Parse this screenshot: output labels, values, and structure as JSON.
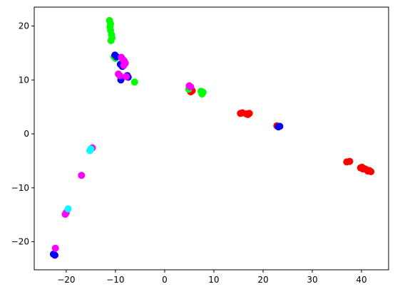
{
  "chart_data": {
    "type": "scatter",
    "title": "",
    "xlabel": "",
    "ylabel": "",
    "xlim": [
      -26.5,
      45.5
    ],
    "ylim": [
      -25.2,
      23.5
    ],
    "xticks": [
      -20,
      -10,
      0,
      10,
      20,
      30,
      40
    ],
    "yticks": [
      -20,
      -10,
      0,
      10,
      20
    ],
    "xtick_labels": [
      "−20",
      "−10",
      "0",
      "10",
      "20",
      "30",
      "40"
    ],
    "ytick_labels": [
      "−20",
      "−10",
      "0",
      "10",
      "20"
    ],
    "grid": false,
    "legend": "none",
    "series": [
      {
        "color": "#ff0000",
        "points": [
          [
            5.3,
            7.8
          ],
          [
            5.6,
            8.0
          ],
          [
            5.2,
            8.1
          ],
          [
            15.4,
            3.8
          ],
          [
            15.8,
            3.9
          ],
          [
            16.6,
            3.7
          ],
          [
            17.2,
            3.8
          ],
          [
            16.9,
            3.6
          ],
          [
            22.8,
            1.5
          ],
          [
            37.0,
            -5.2
          ],
          [
            37.6,
            -5.1
          ],
          [
            39.8,
            -6.3
          ],
          [
            40.3,
            -6.5
          ],
          [
            40.7,
            -6.5
          ],
          [
            41.1,
            -6.7
          ],
          [
            41.6,
            -6.8
          ],
          [
            41.9,
            -7.0
          ],
          [
            40.1,
            -6.2
          ],
          [
            41.3,
            -6.9
          ]
        ]
      },
      {
        "color": "#00ff00",
        "points": [
          [
            -11.2,
            21.0
          ],
          [
            -11.0,
            20.4
          ],
          [
            -11.1,
            19.8
          ],
          [
            -11.0,
            19.2
          ],
          [
            -10.8,
            18.4
          ],
          [
            -10.7,
            17.8
          ],
          [
            -10.9,
            17.3
          ],
          [
            -10.3,
            14.3
          ],
          [
            -10.0,
            14.0
          ],
          [
            -6.1,
            9.6
          ],
          [
            4.9,
            8.3
          ],
          [
            7.4,
            7.9
          ],
          [
            7.6,
            7.4
          ],
          [
            7.8,
            7.7
          ]
        ]
      },
      {
        "color": "#0000ff",
        "points": [
          [
            -10.1,
            14.6
          ],
          [
            -9.8,
            14.3
          ],
          [
            -9.0,
            12.9
          ],
          [
            -8.6,
            12.5
          ],
          [
            -7.6,
            10.8
          ],
          [
            -7.4,
            10.5
          ],
          [
            -8.9,
            10.0
          ],
          [
            23.4,
            1.4
          ],
          [
            23.1,
            1.3
          ],
          [
            -22.6,
            -22.3
          ],
          [
            -22.3,
            -22.5
          ]
        ]
      },
      {
        "color": "#ff00ff",
        "points": [
          [
            -8.8,
            14.2
          ],
          [
            -8.5,
            13.8
          ],
          [
            -8.2,
            13.5
          ],
          [
            -8.0,
            13.1
          ],
          [
            -8.3,
            12.7
          ],
          [
            -9.4,
            11.1
          ],
          [
            -9.1,
            10.8
          ],
          [
            -7.8,
            10.6
          ],
          [
            5.0,
            8.9
          ],
          [
            5.3,
            8.7
          ],
          [
            -14.7,
            -2.6
          ],
          [
            -16.9,
            -7.7
          ],
          [
            -20.0,
            -14.6
          ],
          [
            -20.2,
            -14.9
          ],
          [
            -22.2,
            -21.2
          ]
        ]
      },
      {
        "color": "#00ffff",
        "points": [
          [
            -15.2,
            -3.1
          ],
          [
            -15.0,
            -2.8
          ],
          [
            -19.6,
            -13.9
          ]
        ]
      }
    ]
  }
}
